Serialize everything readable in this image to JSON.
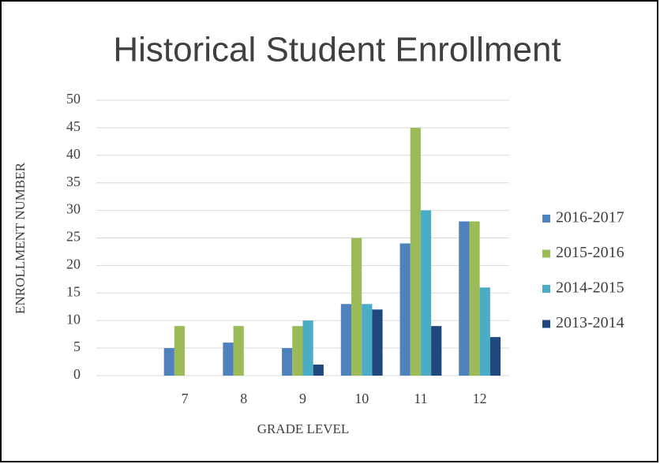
{
  "chart_data": {
    "type": "bar",
    "title": "Historical Student Enrollment",
    "x_label": "GRADE LEVEL",
    "y_label": "ENROLLMENT NUMBER",
    "categories": [
      null,
      "7",
      "8",
      "9",
      "10",
      "11",
      "12"
    ],
    "series": [
      {
        "name": "2016-2017",
        "color": "#4f81bd",
        "values": [
          null,
          5,
          6,
          5,
          13,
          24,
          28
        ]
      },
      {
        "name": "2015-2016",
        "color": "#9bbb59",
        "values": [
          null,
          9,
          9,
          9,
          25,
          45,
          28
        ]
      },
      {
        "name": "2014-2015",
        "color": "#4bacc6",
        "values": [
          null,
          null,
          null,
          10,
          13,
          30,
          16
        ]
      },
      {
        "name": "2013-2014",
        "color": "#1f497d",
        "values": [
          null,
          null,
          null,
          2,
          12,
          9,
          7
        ]
      }
    ],
    "ylim": [
      0,
      50
    ],
    "yticks": [
      0,
      5,
      10,
      15,
      20,
      25,
      30,
      35,
      40,
      45,
      50
    ],
    "grid": true,
    "legend": "right"
  }
}
